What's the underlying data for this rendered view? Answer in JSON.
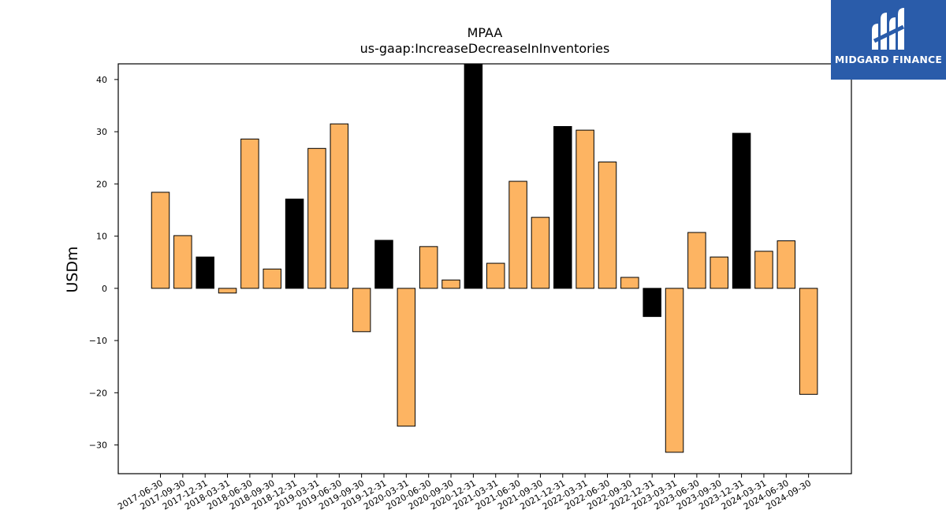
{
  "chart_data": {
    "type": "bar",
    "title": "MPAA",
    "subtitle": "us-gaap:IncreaseDecreaseInInventories",
    "xlabel": "",
    "ylabel": "USDm",
    "ylim": [
      -35.5,
      43.0
    ],
    "yticks": [
      40,
      30,
      20,
      10,
      0,
      -10,
      -20,
      -30
    ],
    "ytick_labels": [
      "40",
      "30",
      "20",
      "10",
      "0",
      "−10",
      "−20",
      "−30"
    ],
    "grid": false,
    "categories": [
      "2017-06-30",
      "2017-09-30",
      "2017-12-31",
      "2018-03-31",
      "2018-06-30",
      "2018-09-30",
      "2018-12-31",
      "2019-03-31",
      "2019-06-30",
      "2019-09-30",
      "2019-12-31",
      "2020-03-31",
      "2020-06-30",
      "2020-09-30",
      "2020-12-31",
      "2021-03-31",
      "2021-06-30",
      "2021-09-30",
      "2021-12-31",
      "2022-03-31",
      "2022-06-30",
      "2022-09-30",
      "2022-12-31",
      "2023-03-31",
      "2023-06-30",
      "2023-09-30",
      "2023-12-31",
      "2024-03-31",
      "2024-06-30",
      "2024-09-30"
    ],
    "values": [
      18.4,
      10.1,
      6.0,
      -0.9,
      28.6,
      3.7,
      17.1,
      26.8,
      31.5,
      -8.3,
      9.2,
      -26.4,
      8.0,
      1.6,
      43.0,
      4.8,
      20.5,
      13.6,
      31.0,
      30.3,
      24.2,
      2.1,
      -5.4,
      -31.4,
      10.7,
      6.0,
      29.7,
      7.1,
      9.1,
      -20.3
    ],
    "highlight": [
      false,
      false,
      true,
      false,
      false,
      false,
      true,
      false,
      false,
      false,
      true,
      false,
      false,
      false,
      true,
      false,
      false,
      false,
      true,
      false,
      false,
      false,
      true,
      false,
      false,
      false,
      true,
      false,
      false,
      false
    ],
    "colors": {
      "bar": "#fdb462",
      "highlight_bar": "#000000",
      "edge": "#000000"
    }
  },
  "logo": {
    "text": "MIDGARD FINANCE",
    "background": "#2a5caa"
  }
}
